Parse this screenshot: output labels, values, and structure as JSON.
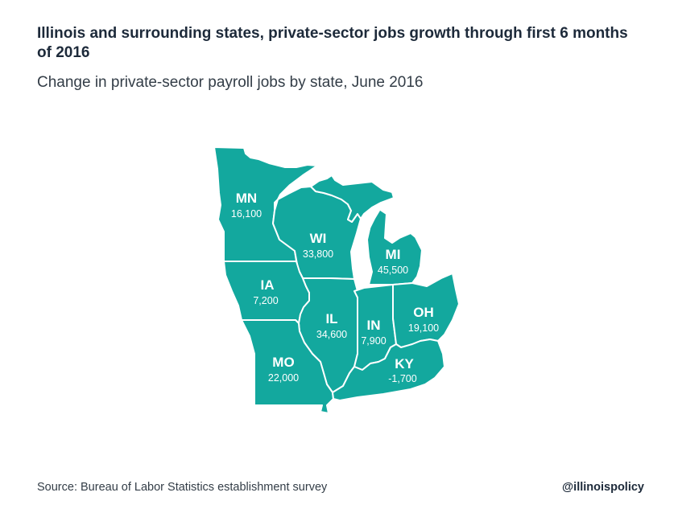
{
  "title": "Illinois and surrounding states, private-sector jobs growth through first 6 months of 2016",
  "subtitle": "Change in private-sector payroll jobs by state, June 2016",
  "source": "Source: Bureau of Labor Statistics establishment survey",
  "handle": "@illinoispolicy",
  "colors": {
    "state_fill": "#13a89e",
    "border": "#ffffff",
    "title_text": "#1d2a3a"
  },
  "states": {
    "MN": {
      "abbr": "MN",
      "value": "16,100"
    },
    "WI": {
      "abbr": "WI",
      "value": "33,800"
    },
    "MI": {
      "abbr": "MI",
      "value": "45,500"
    },
    "IA": {
      "abbr": "IA",
      "value": "7,200"
    },
    "IL": {
      "abbr": "IL",
      "value": "34,600"
    },
    "IN": {
      "abbr": "IN",
      "value": "7,900"
    },
    "OH": {
      "abbr": "OH",
      "value": "19,100"
    },
    "MO": {
      "abbr": "MO",
      "value": "22,000"
    },
    "KY": {
      "abbr": "KY",
      "value": "-1,700"
    }
  }
}
